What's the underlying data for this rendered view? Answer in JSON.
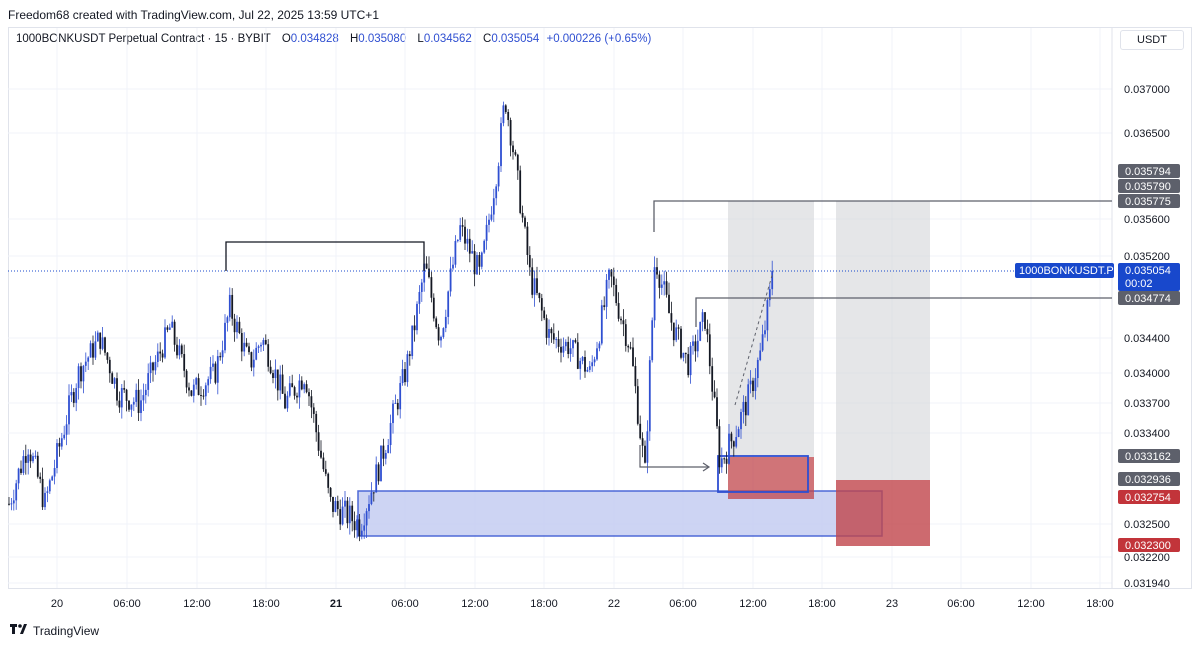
{
  "credit": "Freedom68 created with TradingView.com, Jul 22, 2025 13:59 UTC+1",
  "legend": {
    "symbol": "1000BONKUSDT Perpetual Contract · 15 · BYBIT",
    "o_label": "O",
    "o": "0.034828",
    "h_label": "H",
    "h": "0.035080",
    "l_label": "L",
    "l": "0.034562",
    "c_label": "C",
    "c": "0.035054",
    "change": "+0.000226 (+0.65%)"
  },
  "currency": "USDT",
  "brand": "TradingView",
  "colors": {
    "up": "#2f4fd1",
    "down": "#131722",
    "accent": "#1848cc",
    "red": "#c2343a",
    "gray_tag": "#5d606b"
  },
  "chart_data": {
    "type": "candlestick",
    "interval_minutes": 15,
    "y_ticks": [
      "0.037000",
      "0.036500",
      "0.035600",
      "0.035200",
      "0.034400",
      "0.034000",
      "0.033700",
      "0.033400",
      "0.032500",
      "0.032200",
      "0.031940"
    ],
    "x_ticks": [
      "20",
      "06:00",
      "12:00",
      "18:00",
      "21",
      "06:00",
      "12:00",
      "18:00",
      "22",
      "06:00",
      "12:00",
      "18:00",
      "23",
      "06:00",
      "12:00",
      "18:00"
    ],
    "price_tags": [
      {
        "value": "0.035794",
        "color": "gray"
      },
      {
        "value": "0.035790",
        "color": "gray"
      },
      {
        "value": "0.035775",
        "color": "gray"
      },
      {
        "value": "0.035054",
        "color": "blue",
        "label": "1000BONKUSDT.P",
        "countdown": "00:02"
      },
      {
        "value": "0.034774",
        "color": "gray"
      },
      {
        "value": "0.033162",
        "color": "gray"
      },
      {
        "value": "0.032936",
        "color": "gray"
      },
      {
        "value": "0.032754",
        "color": "red"
      },
      {
        "value": "0.032300",
        "color": "red"
      }
    ],
    "last_price": 0.035054
  }
}
